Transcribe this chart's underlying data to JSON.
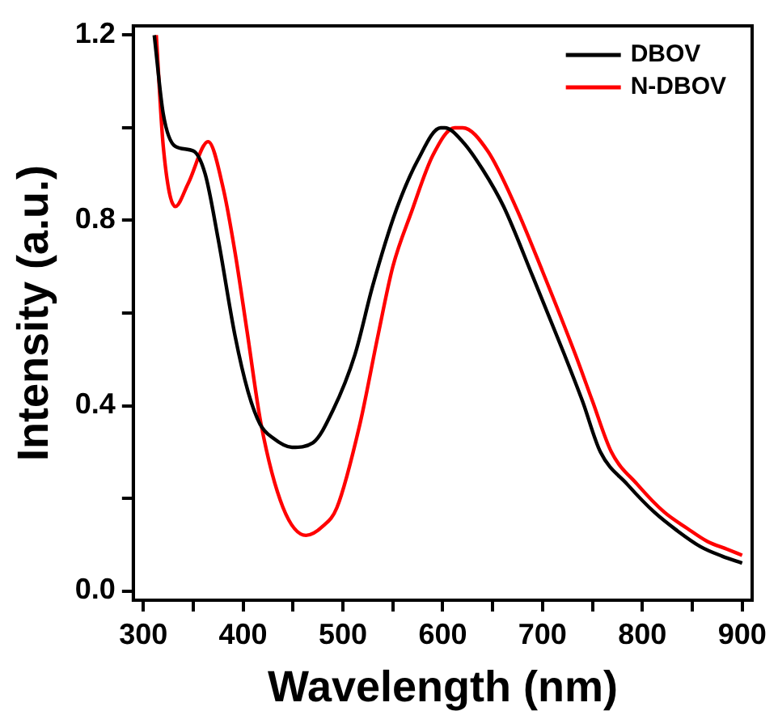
{
  "chart_data": {
    "type": "line",
    "xlabel": "Wavelength (nm)",
    "ylabel": "Intensity (a.u.)",
    "xlim": [
      290,
      910
    ],
    "ylim": [
      -0.02,
      1.22
    ],
    "xticks": [
      300,
      {
        "value": 350,
        "label": null
      },
      400,
      {
        "value": 450,
        "label": null
      },
      500,
      {
        "value": 550,
        "label": null
      },
      600,
      {
        "value": 650,
        "label": null
      },
      700,
      {
        "value": 750,
        "label": null
      },
      800,
      {
        "value": 850,
        "label": null
      },
      900
    ],
    "yticks": [
      {
        "value": 0,
        "label": "0.0"
      },
      {
        "value": 0.2,
        "label": null
      },
      0.4,
      {
        "value": 0.6,
        "label": null
      },
      0.8,
      {
        "value": 1,
        "label": null
      },
      1.2
    ],
    "grid": false,
    "legend": "top right",
    "marker": "none",
    "line_style": "solid",
    "series": [
      {
        "name": "DBOV",
        "color": "#000000",
        "x": [
          311,
          320,
          332,
          350,
          362,
          375,
          392,
          405,
          417,
          430,
          449,
          470,
          490,
          512,
          530,
          553,
          575,
          598,
          602,
          620,
          640,
          661,
          690,
          722,
          740,
          758,
          785,
          812,
          835,
          858,
          880,
          900
        ],
        "values": [
          1.2,
          1.03,
          0.96,
          0.95,
          0.9,
          0.76,
          0.55,
          0.43,
          0.36,
          0.33,
          0.31,
          0.32,
          0.39,
          0.51,
          0.66,
          0.82,
          0.93,
          1.0,
          1.0,
          0.97,
          0.91,
          0.83,
          0.68,
          0.51,
          0.41,
          0.3,
          0.23,
          0.17,
          0.13,
          0.096,
          0.075,
          0.06
        ]
      },
      {
        "name": "N-DBOV",
        "color": "#ff0000",
        "x": [
          313,
          320,
          332,
          345,
          365,
          380,
          392,
          404,
          418,
          440,
          463,
          480,
          494,
          517,
          535,
          550,
          569,
          590,
          612,
          620,
          645,
          673,
          700,
          733,
          750,
          769,
          795,
          822,
          845,
          865,
          885,
          900
        ],
        "values": [
          1.2,
          0.96,
          0.83,
          0.88,
          0.97,
          0.87,
          0.73,
          0.56,
          0.36,
          0.18,
          0.12,
          0.14,
          0.18,
          0.36,
          0.55,
          0.7,
          0.82,
          0.94,
          1.0,
          1.0,
          0.95,
          0.83,
          0.69,
          0.51,
          0.41,
          0.3,
          0.23,
          0.17,
          0.135,
          0.107,
          0.09,
          0.077
        ]
      }
    ]
  }
}
